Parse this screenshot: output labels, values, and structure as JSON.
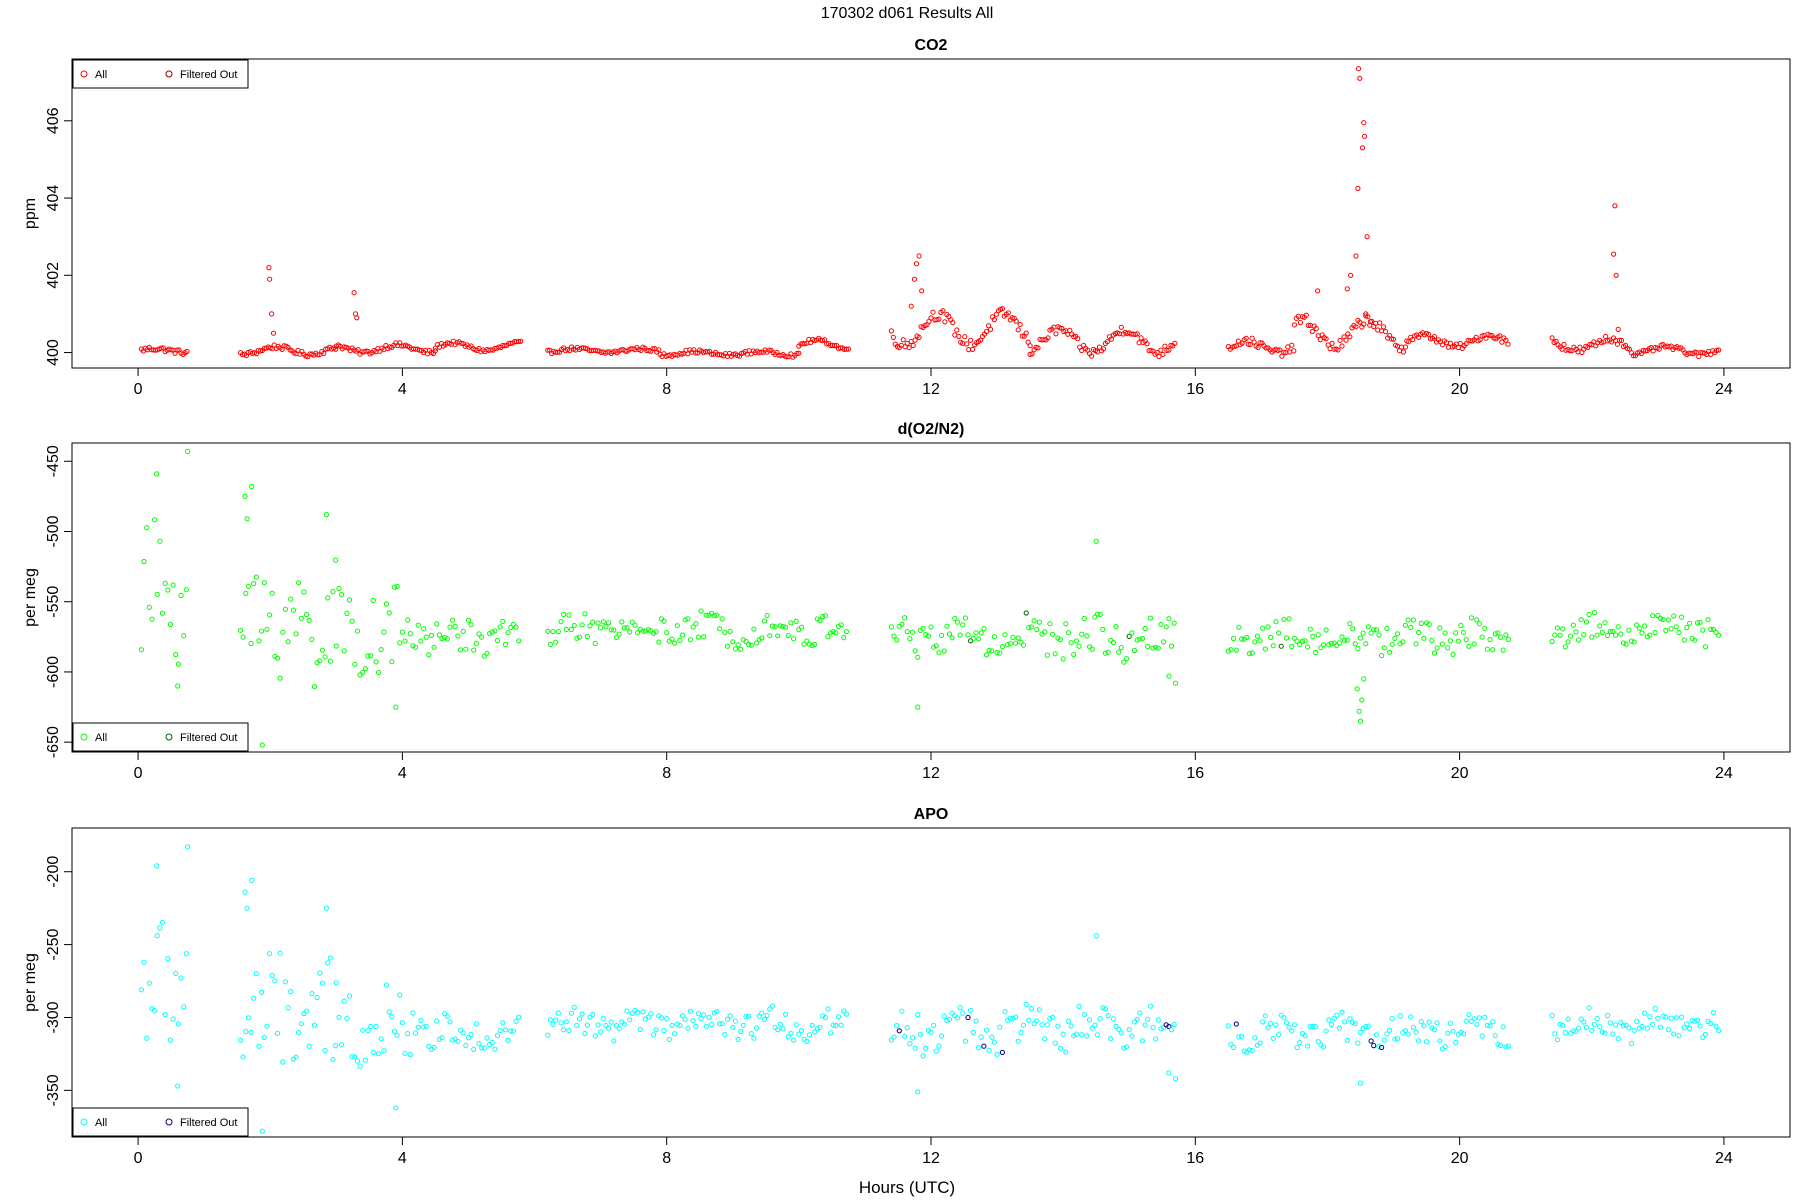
{
  "figure": {
    "title": "170302   d061   Results All",
    "xlabel": "Hours (UTC)"
  },
  "chart_data": [
    {
      "type": "scatter",
      "title": "CO2",
      "ylabel": "ppm",
      "xlim": [
        -1.0,
        25.0
      ],
      "ylim": [
        399.6,
        407.6
      ],
      "xticks": [
        0,
        4,
        8,
        12,
        16,
        20,
        24
      ],
      "yticks": [
        400,
        402,
        404,
        406
      ],
      "grid": false,
      "legend": {
        "position": "top-left",
        "entries": [
          "All",
          "Filtered Out"
        ]
      },
      "colors": {
        "all": "#ff0000",
        "filtered": "#8b0000"
      },
      "segments": [
        {
          "x0": 0.05,
          "x1": 0.75,
          "base": 400.05,
          "amp": 0.05,
          "noise": 0.06
        },
        {
          "x0": 1.55,
          "x1": 3.0,
          "base": 400.05,
          "amp": 0.1,
          "noise": 0.06
        },
        {
          "x0": 3.0,
          "x1": 4.5,
          "base": 400.1,
          "amp": 0.1,
          "noise": 0.06
        },
        {
          "x0": 4.5,
          "x1": 5.8,
          "base": 400.15,
          "amp": 0.1,
          "noise": 0.05
        },
        {
          "x0": 6.2,
          "x1": 7.9,
          "base": 400.05,
          "amp": 0.05,
          "noise": 0.05
        },
        {
          "x0": 7.9,
          "x1": 10.0,
          "base": 399.98,
          "amp": 0.05,
          "noise": 0.05
        },
        {
          "x0": 10.0,
          "x1": 10.75,
          "base": 400.2,
          "amp": 0.12,
          "noise": 0.05
        },
        {
          "x0": 11.4,
          "x1": 13.5,
          "base": 400.6,
          "amp": 0.4,
          "noise": 0.15
        },
        {
          "x0": 13.5,
          "x1": 15.7,
          "base": 400.3,
          "amp": 0.3,
          "noise": 0.12
        },
        {
          "x0": 16.5,
          "x1": 17.5,
          "base": 400.15,
          "amp": 0.15,
          "noise": 0.1
        },
        {
          "x0": 17.5,
          "x1": 19.2,
          "base": 400.5,
          "amp": 0.35,
          "noise": 0.15
        },
        {
          "x0": 19.2,
          "x1": 20.75,
          "base": 400.3,
          "amp": 0.15,
          "noise": 0.08
        },
        {
          "x0": 21.4,
          "x1": 22.6,
          "base": 400.2,
          "amp": 0.15,
          "noise": 0.1
        },
        {
          "x0": 22.6,
          "x1": 23.95,
          "base": 400.05,
          "amp": 0.1,
          "noise": 0.06
        }
      ],
      "points": [
        {
          "x": 1.98,
          "y": 402.2
        },
        {
          "x": 1.99,
          "y": 401.9
        },
        {
          "x": 2.02,
          "y": 401.0
        },
        {
          "x": 2.05,
          "y": 400.5
        },
        {
          "x": 3.27,
          "y": 401.55
        },
        {
          "x": 3.29,
          "y": 401.0
        },
        {
          "x": 3.31,
          "y": 400.9
        },
        {
          "x": 11.82,
          "y": 402.5
        },
        {
          "x": 11.78,
          "y": 402.3
        },
        {
          "x": 11.75,
          "y": 401.9
        },
        {
          "x": 11.86,
          "y": 401.6
        },
        {
          "x": 11.7,
          "y": 401.2
        },
        {
          "x": 17.85,
          "y": 401.6
        },
        {
          "x": 18.3,
          "y": 401.65
        },
        {
          "x": 18.35,
          "y": 402.0
        },
        {
          "x": 18.47,
          "y": 407.35
        },
        {
          "x": 18.49,
          "y": 407.1
        },
        {
          "x": 18.55,
          "y": 405.95
        },
        {
          "x": 18.56,
          "y": 405.6
        },
        {
          "x": 18.53,
          "y": 405.3
        },
        {
          "x": 18.46,
          "y": 404.25
        },
        {
          "x": 18.6,
          "y": 403.0
        },
        {
          "x": 18.43,
          "y": 402.5
        },
        {
          "x": 18.58,
          "y": 401.0
        },
        {
          "x": 18.65,
          "y": 400.8
        },
        {
          "x": 22.35,
          "y": 403.8
        },
        {
          "x": 22.33,
          "y": 402.55
        },
        {
          "x": 22.37,
          "y": 402.0
        },
        {
          "x": 22.4,
          "y": 400.6
        }
      ]
    },
    {
      "type": "scatter",
      "title": "d(O2/N2)",
      "ylabel": "per meg",
      "xlim": [
        -1.0,
        25.0
      ],
      "ylim": [
        -657,
        -437
      ],
      "xticks": [
        0,
        4,
        8,
        12,
        16,
        20,
        24
      ],
      "yticks": [
        -650,
        -600,
        -550,
        -500,
        -450
      ],
      "grid": false,
      "legend": {
        "position": "bottom-left",
        "entries": [
          "All",
          "Filtered Out"
        ]
      },
      "colors": {
        "all": "#00ff00",
        "filtered": "#006400"
      },
      "segments": [
        {
          "x0": 0.05,
          "x1": 0.75,
          "base": -545,
          "amp": 5,
          "noise": 50
        },
        {
          "x0": 1.55,
          "x1": 3.0,
          "base": -565,
          "amp": 5,
          "noise": 45
        },
        {
          "x0": 3.0,
          "x1": 4.2,
          "base": -572,
          "amp": 5,
          "noise": 28
        },
        {
          "x0": 4.2,
          "x1": 5.8,
          "base": -575,
          "amp": 3,
          "noise": 12
        },
        {
          "x0": 6.2,
          "x1": 10.75,
          "base": -570,
          "amp": 4,
          "noise": 10
        },
        {
          "x0": 11.4,
          "x1": 15.7,
          "base": -575,
          "amp": 5,
          "noise": 14
        },
        {
          "x0": 16.5,
          "x1": 20.75,
          "base": -575,
          "amp": 4,
          "noise": 11
        },
        {
          "x0": 21.4,
          "x1": 23.95,
          "base": -570,
          "amp": 4,
          "noise": 10
        }
      ],
      "points": [
        {
          "x": 0.75,
          "y": -443
        },
        {
          "x": 0.28,
          "y": -459
        },
        {
          "x": 1.72,
          "y": -468
        },
        {
          "x": 1.62,
          "y": -475
        },
        {
          "x": 1.65,
          "y": -491
        },
        {
          "x": 2.85,
          "y": -488
        },
        {
          "x": 14.5,
          "y": -507
        },
        {
          "x": 1.88,
          "y": -652
        },
        {
          "x": 3.9,
          "y": -625
        },
        {
          "x": 11.8,
          "y": -625
        },
        {
          "x": 18.5,
          "y": -635
        },
        {
          "x": 18.48,
          "y": -628
        },
        {
          "x": 18.52,
          "y": -620
        },
        {
          "x": 18.45,
          "y": -612
        },
        {
          "x": 18.55,
          "y": -605
        },
        {
          "x": 15.7,
          "y": -608
        },
        {
          "x": 15.6,
          "y": -603
        },
        {
          "x": 0.6,
          "y": -610
        }
      ]
    },
    {
      "type": "scatter",
      "title": "APO",
      "ylabel": "per meg",
      "xlim": [
        -1.0,
        25.0
      ],
      "ylim": [
        -382,
        -170
      ],
      "xticks": [
        0,
        4,
        8,
        12,
        16,
        20,
        24
      ],
      "yticks": [
        -350,
        -300,
        -250,
        -200
      ],
      "grid": false,
      "legend": {
        "position": "bottom-left",
        "entries": [
          "All",
          "Filtered Out"
        ]
      },
      "colors": {
        "all": "#00ffff",
        "filtered": "#00008b"
      },
      "segments": [
        {
          "x0": 0.05,
          "x1": 0.75,
          "base": -280,
          "amp": 5,
          "noise": 45
        },
        {
          "x0": 1.55,
          "x1": 3.0,
          "base": -300,
          "amp": 5,
          "noise": 40
        },
        {
          "x0": 3.0,
          "x1": 4.2,
          "base": -305,
          "amp": 5,
          "noise": 25
        },
        {
          "x0": 4.2,
          "x1": 5.8,
          "base": -310,
          "amp": 3,
          "noise": 11
        },
        {
          "x0": 6.2,
          "x1": 10.75,
          "base": -305,
          "amp": 4,
          "noise": 9
        },
        {
          "x0": 11.4,
          "x1": 15.7,
          "base": -308,
          "amp": 5,
          "noise": 14
        },
        {
          "x0": 16.5,
          "x1": 20.75,
          "base": -310,
          "amp": 4,
          "noise": 10
        },
        {
          "x0": 21.4,
          "x1": 23.95,
          "base": -305,
          "amp": 4,
          "noise": 9
        }
      ],
      "points": [
        {
          "x": 0.75,
          "y": -183
        },
        {
          "x": 0.28,
          "y": -196
        },
        {
          "x": 1.72,
          "y": -206
        },
        {
          "x": 1.62,
          "y": -214
        },
        {
          "x": 1.65,
          "y": -225
        },
        {
          "x": 2.85,
          "y": -225
        },
        {
          "x": 14.5,
          "y": -244
        },
        {
          "x": 1.88,
          "y": -378
        },
        {
          "x": 3.9,
          "y": -362
        },
        {
          "x": 11.8,
          "y": -351
        },
        {
          "x": 18.5,
          "y": -345
        },
        {
          "x": 15.7,
          "y": -342
        },
        {
          "x": 15.6,
          "y": -338
        },
        {
          "x": 0.6,
          "y": -347
        }
      ]
    }
  ]
}
